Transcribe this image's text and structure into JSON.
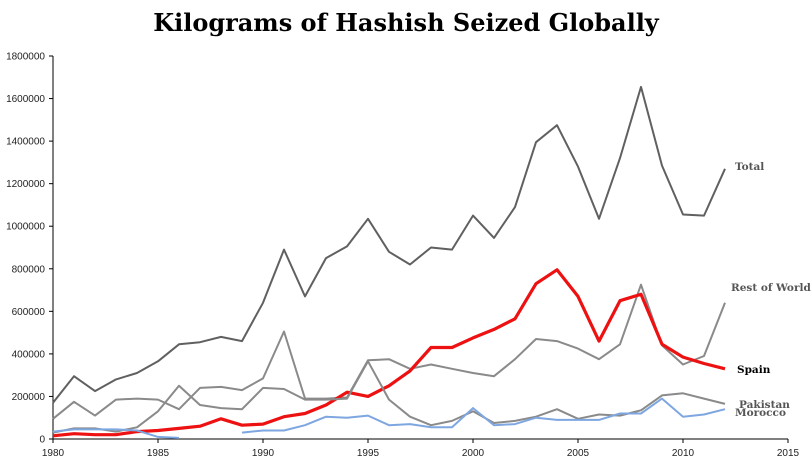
{
  "chart_data": {
    "type": "line",
    "title": "Kilograms of Hashish Seized Globally",
    "xlabel": "",
    "ylabel": "",
    "xlim": [
      1980,
      2015
    ],
    "ylim": [
      0,
      1800000
    ],
    "x_ticks": [
      1980,
      1985,
      1990,
      1995,
      2000,
      2005,
      2010,
      2015
    ],
    "y_ticks": [
      0,
      200000,
      400000,
      600000,
      800000,
      1000000,
      1200000,
      1400000,
      1600000,
      1800000
    ],
    "grid": false,
    "legend": "direct labels at line ends",
    "series": [
      {
        "name": "Total",
        "color": "#606060",
        "x": [
          1980,
          1981,
          1982,
          1983,
          1984,
          1985,
          1986,
          1987,
          1988,
          1989,
          1990,
          1991,
          1992,
          1993,
          1994,
          1995,
          1996,
          1997,
          1998,
          1999,
          2000,
          2001,
          2002,
          2003,
          2004,
          2005,
          2006,
          2007,
          2008,
          2009,
          2010,
          2011,
          2012
        ],
        "values": [
          170000,
          295000,
          225000,
          280000,
          310000,
          365000,
          445000,
          455000,
          480000,
          460000,
          640000,
          890000,
          670000,
          850000,
          905000,
          1035000,
          880000,
          820000,
          900000,
          890000,
          1050000,
          945000,
          1090000,
          1395000,
          1475000,
          1280000,
          1035000,
          1320000,
          1655000,
          1285000,
          1055000,
          1050000,
          1270000
        ]
      },
      {
        "name": "Rest of World",
        "color": "#8a8a8a",
        "x": [
          1980,
          1981,
          1982,
          1983,
          1984,
          1985,
          1986,
          1987,
          1988,
          1989,
          1990,
          1991,
          1992,
          1993,
          1994,
          1995,
          1996,
          1997,
          1998,
          1999,
          2000,
          2001,
          2002,
          2003,
          2004,
          2005,
          2006,
          2007,
          2008,
          2009,
          2010,
          2011,
          2012
        ],
        "values": [
          95000,
          175000,
          110000,
          185000,
          190000,
          185000,
          140000,
          240000,
          245000,
          230000,
          285000,
          505000,
          190000,
          190000,
          195000,
          370000,
          375000,
          330000,
          350000,
          330000,
          310000,
          295000,
          375000,
          470000,
          460000,
          425000,
          375000,
          445000,
          725000,
          440000,
          350000,
          390000,
          640000
        ]
      },
      {
        "name": "Spain",
        "color": "#ee1111",
        "x": [
          1980,
          1981,
          1982,
          1983,
          1984,
          1985,
          1986,
          1987,
          1988,
          1989,
          1990,
          1991,
          1992,
          1993,
          1994,
          1995,
          1996,
          1997,
          1998,
          1999,
          2000,
          2001,
          2002,
          2003,
          2004,
          2005,
          2006,
          2007,
          2008,
          2009,
          2010,
          2011,
          2012
        ],
        "values": [
          15000,
          25000,
          20000,
          20000,
          35000,
          40000,
          50000,
          60000,
          95000,
          65000,
          70000,
          105000,
          120000,
          160000,
          220000,
          200000,
          250000,
          320000,
          430000,
          430000,
          475000,
          515000,
          565000,
          730000,
          795000,
          670000,
          460000,
          650000,
          680000,
          445000,
          385000,
          355000,
          330000
        ]
      },
      {
        "name": "Pakistan",
        "color": "#8a8a8a",
        "x": [
          1980,
          1981,
          1982,
          1983,
          1984,
          1985,
          1986,
          1987,
          1988,
          1989,
          1990,
          1991,
          1992,
          1993,
          1994,
          1995,
          1996,
          1997,
          1998,
          1999,
          2000,
          2001,
          2002,
          2003,
          2004,
          2005,
          2006,
          2007,
          2008,
          2009,
          2010,
          2011,
          2012
        ],
        "values": [
          30000,
          50000,
          50000,
          35000,
          55000,
          130000,
          250000,
          160000,
          145000,
          140000,
          240000,
          235000,
          185000,
          185000,
          190000,
          365000,
          185000,
          105000,
          65000,
          85000,
          130000,
          75000,
          85000,
          105000,
          140000,
          95000,
          115000,
          110000,
          135000,
          205000,
          215000,
          190000,
          165000
        ]
      },
      {
        "name": "Morocco",
        "color": "#7ea6e0",
        "x": [
          1980,
          1981,
          1982,
          1983,
          1984,
          1985,
          1986,
          1987,
          1988,
          1989,
          1990,
          1991,
          1992,
          1993,
          1994,
          1995,
          1996,
          1997,
          1998,
          1999,
          2000,
          2001,
          2002,
          2003,
          2004,
          2005,
          2006,
          2007,
          2008,
          2009,
          2010,
          2011,
          2012
        ],
        "values": [
          35000,
          45000,
          45000,
          45000,
          40000,
          10000,
          5000,
          null,
          null,
          30000,
          40000,
          40000,
          65000,
          105000,
          100000,
          110000,
          65000,
          70000,
          55000,
          55000,
          145000,
          65000,
          70000,
          100000,
          90000,
          90000,
          90000,
          120000,
          120000,
          190000,
          105000,
          115000,
          140000
        ]
      }
    ]
  }
}
